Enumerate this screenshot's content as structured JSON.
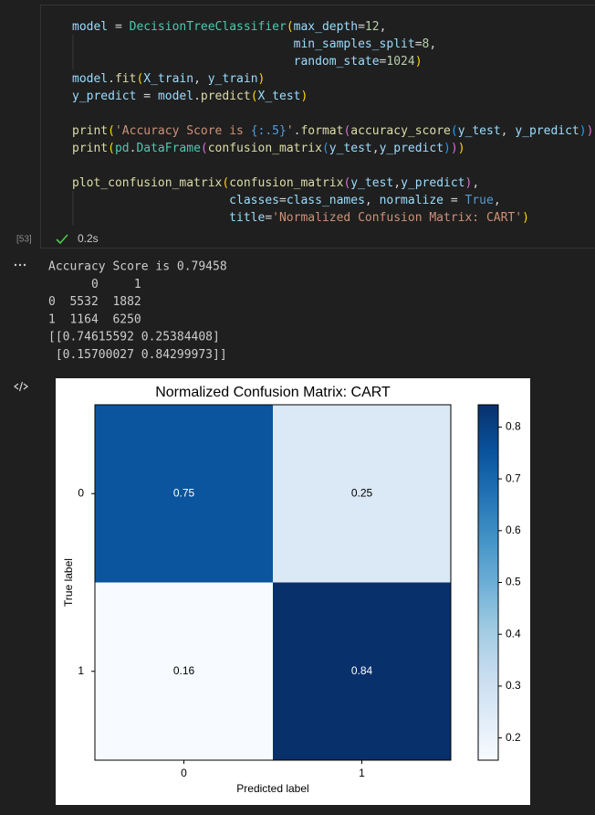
{
  "code_cell": {
    "execution_count": "[53]",
    "status_time": "0.2s",
    "lines": [
      [
        {
          "text": "model",
          "color": "#9cdcfe"
        },
        {
          "text": " = ",
          "color": "#d4d4d4"
        },
        {
          "text": "DecisionTreeClassifier",
          "color": "#4ec9b0"
        },
        {
          "text": "(",
          "color": "#ffd700"
        },
        {
          "text": "max_depth",
          "color": "#9cdcfe"
        },
        {
          "text": "=",
          "color": "#d4d4d4"
        },
        {
          "text": "12",
          "color": "#b5cea8"
        },
        {
          "text": ",",
          "color": "#d4d4d4"
        }
      ],
      [
        {
          "text": "                               min_samples_split",
          "color": "#9cdcfe"
        },
        {
          "text": "=",
          "color": "#d4d4d4"
        },
        {
          "text": "8",
          "color": "#b5cea8"
        },
        {
          "text": ",",
          "color": "#d4d4d4"
        }
      ],
      [
        {
          "text": "                               random_state",
          "color": "#9cdcfe"
        },
        {
          "text": "=",
          "color": "#d4d4d4"
        },
        {
          "text": "1024",
          "color": "#b5cea8"
        },
        {
          "text": ")",
          "color": "#ffd700"
        }
      ],
      [
        {
          "text": "model",
          "color": "#9cdcfe"
        },
        {
          "text": ".",
          "color": "#d4d4d4"
        },
        {
          "text": "fit",
          "color": "#dcdcaa"
        },
        {
          "text": "(",
          "color": "#ffd700"
        },
        {
          "text": "X_train",
          "color": "#9cdcfe"
        },
        {
          "text": ", ",
          "color": "#d4d4d4"
        },
        {
          "text": "y_train",
          "color": "#9cdcfe"
        },
        {
          "text": ")",
          "color": "#ffd700"
        }
      ],
      [
        {
          "text": "y_predict",
          "color": "#9cdcfe"
        },
        {
          "text": " = ",
          "color": "#d4d4d4"
        },
        {
          "text": "model",
          "color": "#9cdcfe"
        },
        {
          "text": ".",
          "color": "#d4d4d4"
        },
        {
          "text": "predict",
          "color": "#dcdcaa"
        },
        {
          "text": "(",
          "color": "#ffd700"
        },
        {
          "text": "X_test",
          "color": "#9cdcfe"
        },
        {
          "text": ")",
          "color": "#ffd700"
        }
      ],
      [],
      [
        {
          "text": "print",
          "color": "#dcdcaa"
        },
        {
          "text": "(",
          "color": "#ffd700"
        },
        {
          "text": "'Accuracy Score is ",
          "color": "#ce9178"
        },
        {
          "text": "{:.5}",
          "color": "#569cd6"
        },
        {
          "text": "'",
          "color": "#ce9178"
        },
        {
          "text": ".",
          "color": "#d4d4d4"
        },
        {
          "text": "format",
          "color": "#dcdcaa"
        },
        {
          "text": "(",
          "color": "#da70d6"
        },
        {
          "text": "accuracy_score",
          "color": "#dcdcaa"
        },
        {
          "text": "(",
          "color": "#179fff"
        },
        {
          "text": "y_test",
          "color": "#9cdcfe"
        },
        {
          "text": ", ",
          "color": "#d4d4d4"
        },
        {
          "text": "y_predict",
          "color": "#9cdcfe"
        },
        {
          "text": ")",
          "color": "#179fff"
        },
        {
          "text": ")",
          "color": "#da70d6"
        },
        {
          "text": ")",
          "color": "#ffd700"
        }
      ],
      [
        {
          "text": "print",
          "color": "#dcdcaa"
        },
        {
          "text": "(",
          "color": "#ffd700"
        },
        {
          "text": "pd",
          "color": "#4ec9b0"
        },
        {
          "text": ".",
          "color": "#d4d4d4"
        },
        {
          "text": "DataFrame",
          "color": "#4ec9b0"
        },
        {
          "text": "(",
          "color": "#da70d6"
        },
        {
          "text": "confusion_matrix",
          "color": "#dcdcaa"
        },
        {
          "text": "(",
          "color": "#179fff"
        },
        {
          "text": "y_test",
          "color": "#9cdcfe"
        },
        {
          "text": ",",
          "color": "#d4d4d4"
        },
        {
          "text": "y_predict",
          "color": "#9cdcfe"
        },
        {
          "text": ")",
          "color": "#179fff"
        },
        {
          "text": ")",
          "color": "#da70d6"
        },
        {
          "text": ")",
          "color": "#ffd700"
        }
      ],
      [],
      [
        {
          "text": "plot_confusion_matrix",
          "color": "#dcdcaa"
        },
        {
          "text": "(",
          "color": "#ffd700"
        },
        {
          "text": "confusion_matrix",
          "color": "#dcdcaa"
        },
        {
          "text": "(",
          "color": "#da70d6"
        },
        {
          "text": "y_test",
          "color": "#9cdcfe"
        },
        {
          "text": ",",
          "color": "#d4d4d4"
        },
        {
          "text": "y_predict",
          "color": "#9cdcfe"
        },
        {
          "text": ")",
          "color": "#da70d6"
        },
        {
          "text": ",",
          "color": "#d4d4d4"
        }
      ],
      [
        {
          "text": "                      classes",
          "color": "#9cdcfe"
        },
        {
          "text": "=",
          "color": "#d4d4d4"
        },
        {
          "text": "class_names",
          "color": "#9cdcfe"
        },
        {
          "text": ", ",
          "color": "#d4d4d4"
        },
        {
          "text": "normalize",
          "color": "#9cdcfe"
        },
        {
          "text": " = ",
          "color": "#d4d4d4"
        },
        {
          "text": "True",
          "color": "#569cd6"
        },
        {
          "text": ",",
          "color": "#d4d4d4"
        }
      ],
      [
        {
          "text": "                      title",
          "color": "#9cdcfe"
        },
        {
          "text": "=",
          "color": "#d4d4d4"
        },
        {
          "text": "'Normalized Confusion Matrix: CART'",
          "color": "#ce9178"
        },
        {
          "text": ")",
          "color": "#ffd700"
        }
      ]
    ]
  },
  "output": {
    "lines": [
      "Accuracy Score is 0.79458",
      "      0     1",
      "0  5532  1882",
      "1  1164  6250",
      "[[0.74615592 0.25384408]",
      " [0.15700027 0.84299973]]"
    ]
  },
  "chart_data": {
    "type": "heatmap",
    "title": "Normalized Confusion Matrix: CART",
    "x_label": "Predicted label",
    "y_label": "True label",
    "x_categories": [
      "0",
      "1"
    ],
    "y_categories": [
      "0",
      "1"
    ],
    "values": [
      [
        0.74615592,
        0.25384408
      ],
      [
        0.15700027,
        0.84299973
      ]
    ],
    "value_labels": [
      [
        "0.75",
        "0.25"
      ],
      [
        "0.16",
        "0.84"
      ]
    ],
    "colormap": "Blues",
    "clim": [
      0.157,
      0.843
    ],
    "colorbar_ticks": [
      0.2,
      0.3,
      0.4,
      0.5,
      0.6,
      0.7,
      0.8
    ]
  }
}
